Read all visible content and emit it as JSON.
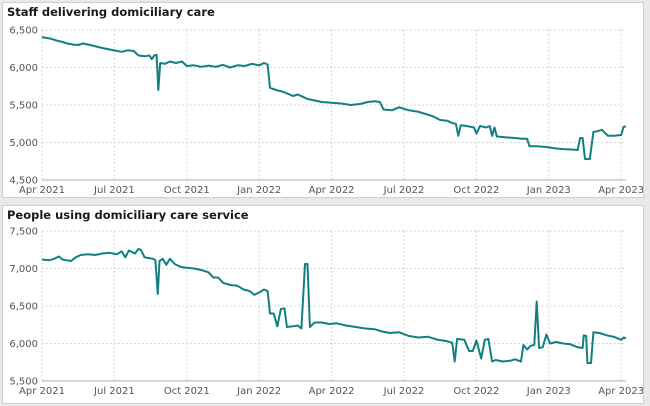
{
  "colors": {
    "line": "#127f80"
  },
  "x_axis": {
    "ticks": [
      "Apr 2021",
      "Jul 2021",
      "Oct 2021",
      "Jan 2022",
      "Apr 2022",
      "Jul 2022",
      "Oct 2022",
      "Jan 2023",
      "Apr 2023"
    ]
  },
  "chart_data": [
    {
      "type": "line",
      "title": "Staff delivering domiciliary care",
      "xlabel": "",
      "ylabel": "",
      "ylim": [
        4500,
        6500
      ],
      "y_ticks": [
        4500,
        5000,
        5500,
        6000,
        6500
      ],
      "y_tick_labels": [
        "4,500",
        "5,000",
        "5,500",
        "6,000",
        "6,500"
      ],
      "x_unit": "months since Apr 2021",
      "xlim": [
        0,
        24.2
      ],
      "series": [
        {
          "name": "Staff delivering domiciliary care",
          "points": [
            [
              0.0,
              6405
            ],
            [
              0.35,
              6385
            ],
            [
              0.6,
              6360
            ],
            [
              0.85,
              6340
            ],
            [
              1.05,
              6320
            ],
            [
              1.3,
              6305
            ],
            [
              1.5,
              6300
            ],
            [
              1.7,
              6320
            ],
            [
              2.0,
              6300
            ],
            [
              2.25,
              6280
            ],
            [
              2.5,
              6260
            ],
            [
              2.8,
              6240
            ],
            [
              3.05,
              6225
            ],
            [
              3.3,
              6210
            ],
            [
              3.55,
              6230
            ],
            [
              3.8,
              6220
            ],
            [
              4.0,
              6160
            ],
            [
              4.25,
              6150
            ],
            [
              4.45,
              6160
            ],
            [
              4.55,
              6110
            ],
            [
              4.65,
              6160
            ],
            [
              4.75,
              6170
            ],
            [
              4.82,
              5700
            ],
            [
              4.9,
              6060
            ],
            [
              5.1,
              6050
            ],
            [
              5.3,
              6080
            ],
            [
              5.55,
              6060
            ],
            [
              5.8,
              6080
            ],
            [
              6.0,
              6020
            ],
            [
              6.3,
              6030
            ],
            [
              6.6,
              6010
            ],
            [
              6.9,
              6025
            ],
            [
              7.2,
              6010
            ],
            [
              7.5,
              6035
            ],
            [
              7.8,
              6000
            ],
            [
              8.1,
              6030
            ],
            [
              8.4,
              6020
            ],
            [
              8.7,
              6050
            ],
            [
              9.0,
              6030
            ],
            [
              9.2,
              6060
            ],
            [
              9.35,
              6040
            ],
            [
              9.45,
              5730
            ],
            [
              9.7,
              5700
            ],
            [
              9.95,
              5680
            ],
            [
              10.2,
              5650
            ],
            [
              10.4,
              5620
            ],
            [
              10.6,
              5640
            ],
            [
              10.8,
              5610
            ],
            [
              11.0,
              5580
            ],
            [
              11.3,
              5560
            ],
            [
              11.6,
              5540
            ],
            [
              12.0,
              5530
            ],
            [
              12.4,
              5520
            ],
            [
              12.8,
              5500
            ],
            [
              13.2,
              5515
            ],
            [
              13.5,
              5540
            ],
            [
              13.8,
              5550
            ],
            [
              14.0,
              5540
            ],
            [
              14.15,
              5440
            ],
            [
              14.5,
              5430
            ],
            [
              14.8,
              5470
            ],
            [
              15.2,
              5430
            ],
            [
              15.6,
              5410
            ],
            [
              15.9,
              5380
            ],
            [
              16.2,
              5350
            ],
            [
              16.5,
              5300
            ],
            [
              16.8,
              5290
            ],
            [
              17.0,
              5260
            ],
            [
              17.15,
              5250
            ],
            [
              17.25,
              5090
            ],
            [
              17.35,
              5230
            ],
            [
              17.6,
              5220
            ],
            [
              17.9,
              5200
            ],
            [
              18.0,
              5120
            ],
            [
              18.15,
              5220
            ],
            [
              18.4,
              5200
            ],
            [
              18.55,
              5220
            ],
            [
              18.65,
              5090
            ],
            [
              18.75,
              5200
            ],
            [
              18.85,
              5080
            ],
            [
              19.2,
              5070
            ],
            [
              19.6,
              5060
            ],
            [
              19.9,
              5050
            ],
            [
              20.1,
              5050
            ],
            [
              20.2,
              4950
            ],
            [
              20.5,
              4950
            ],
            [
              20.9,
              4940
            ],
            [
              21.3,
              4920
            ],
            [
              21.7,
              4910
            ],
            [
              22.0,
              4905
            ],
            [
              22.2,
              4900
            ],
            [
              22.3,
              5060
            ],
            [
              22.4,
              5060
            ],
            [
              22.5,
              4780
            ],
            [
              22.7,
              4780
            ],
            [
              22.85,
              5140
            ],
            [
              23.0,
              5150
            ],
            [
              23.2,
              5170
            ],
            [
              23.45,
              5090
            ],
            [
              23.7,
              5090
            ],
            [
              24.0,
              5100
            ],
            [
              24.1,
              5210
            ],
            [
              24.2,
              5215
            ]
          ]
        }
      ]
    },
    {
      "type": "line",
      "title": "People using domiciliary care service",
      "xlabel": "",
      "ylabel": "",
      "ylim": [
        5500,
        7500
      ],
      "y_ticks": [
        5500,
        6000,
        6500,
        7000,
        7500
      ],
      "y_tick_labels": [
        "5,500",
        "6,000",
        "6,500",
        "7,000",
        "7,500"
      ],
      "x_unit": "months since Apr 2021",
      "xlim": [
        0,
        24.2
      ],
      "series": [
        {
          "name": "People using domiciliary care service",
          "points": [
            [
              0.0,
              7120
            ],
            [
              0.3,
              7110
            ],
            [
              0.5,
              7130
            ],
            [
              0.7,
              7160
            ],
            [
              0.85,
              7120
            ],
            [
              1.0,
              7110
            ],
            [
              1.2,
              7100
            ],
            [
              1.4,
              7150
            ],
            [
              1.6,
              7180
            ],
            [
              1.9,
              7190
            ],
            [
              2.2,
              7180
            ],
            [
              2.5,
              7200
            ],
            [
              2.8,
              7210
            ],
            [
              3.1,
              7190
            ],
            [
              3.3,
              7230
            ],
            [
              3.45,
              7150
            ],
            [
              3.6,
              7240
            ],
            [
              3.85,
              7200
            ],
            [
              4.0,
              7260
            ],
            [
              4.1,
              7250
            ],
            [
              4.25,
              7150
            ],
            [
              4.4,
              7140
            ],
            [
              4.6,
              7130
            ],
            [
              4.7,
              7110
            ],
            [
              4.8,
              6660
            ],
            [
              4.87,
              7100
            ],
            [
              5.0,
              7130
            ],
            [
              5.15,
              7050
            ],
            [
              5.3,
              7130
            ],
            [
              5.5,
              7060
            ],
            [
              5.75,
              7020
            ],
            [
              6.0,
              7010
            ],
            [
              6.3,
              7000
            ],
            [
              6.6,
              6980
            ],
            [
              6.9,
              6950
            ],
            [
              7.1,
              6880
            ],
            [
              7.3,
              6880
            ],
            [
              7.5,
              6810
            ],
            [
              7.8,
              6780
            ],
            [
              8.1,
              6770
            ],
            [
              8.35,
              6720
            ],
            [
              8.6,
              6700
            ],
            [
              8.8,
              6650
            ],
            [
              9.0,
              6680
            ],
            [
              9.2,
              6720
            ],
            [
              9.35,
              6700
            ],
            [
              9.45,
              6400
            ],
            [
              9.6,
              6400
            ],
            [
              9.75,
              6230
            ],
            [
              9.9,
              6460
            ],
            [
              10.05,
              6470
            ],
            [
              10.15,
              6220
            ],
            [
              10.4,
              6230
            ],
            [
              10.6,
              6240
            ],
            [
              10.75,
              6200
            ],
            [
              10.9,
              7060
            ],
            [
              11.0,
              7060
            ],
            [
              11.1,
              6220
            ],
            [
              11.3,
              6280
            ],
            [
              11.6,
              6280
            ],
            [
              11.9,
              6260
            ],
            [
              12.2,
              6270
            ],
            [
              12.6,
              6240
            ],
            [
              13.0,
              6220
            ],
            [
              13.4,
              6200
            ],
            [
              13.8,
              6190
            ],
            [
              14.1,
              6160
            ],
            [
              14.4,
              6140
            ],
            [
              14.8,
              6150
            ],
            [
              15.2,
              6100
            ],
            [
              15.6,
              6080
            ],
            [
              16.0,
              6090
            ],
            [
              16.4,
              6050
            ],
            [
              16.8,
              6030
            ],
            [
              17.0,
              6010
            ],
            [
              17.1,
              5760
            ],
            [
              17.2,
              6060
            ],
            [
              17.5,
              6050
            ],
            [
              17.7,
              5900
            ],
            [
              17.85,
              5900
            ],
            [
              18.0,
              6040
            ],
            [
              18.2,
              5800
            ],
            [
              18.35,
              6050
            ],
            [
              18.5,
              6060
            ],
            [
              18.65,
              5760
            ],
            [
              18.8,
              5780
            ],
            [
              19.1,
              5760
            ],
            [
              19.4,
              5770
            ],
            [
              19.6,
              5790
            ],
            [
              19.85,
              5760
            ],
            [
              19.95,
              5980
            ],
            [
              20.1,
              5920
            ],
            [
              20.25,
              5970
            ],
            [
              20.4,
              5980
            ],
            [
              20.5,
              6560
            ],
            [
              20.6,
              5940
            ],
            [
              20.75,
              5950
            ],
            [
              20.9,
              6120
            ],
            [
              21.05,
              6000
            ],
            [
              21.3,
              6020
            ],
            [
              21.6,
              6000
            ],
            [
              21.9,
              5990
            ],
            [
              22.2,
              5950
            ],
            [
              22.4,
              5940
            ],
            [
              22.45,
              6110
            ],
            [
              22.55,
              6100
            ],
            [
              22.6,
              5740
            ],
            [
              22.75,
              5740
            ],
            [
              22.85,
              6150
            ],
            [
              23.1,
              6140
            ],
            [
              23.4,
              6110
            ],
            [
              23.7,
              6090
            ],
            [
              24.0,
              6050
            ],
            [
              24.1,
              6080
            ],
            [
              24.2,
              6070
            ]
          ]
        }
      ]
    }
  ]
}
